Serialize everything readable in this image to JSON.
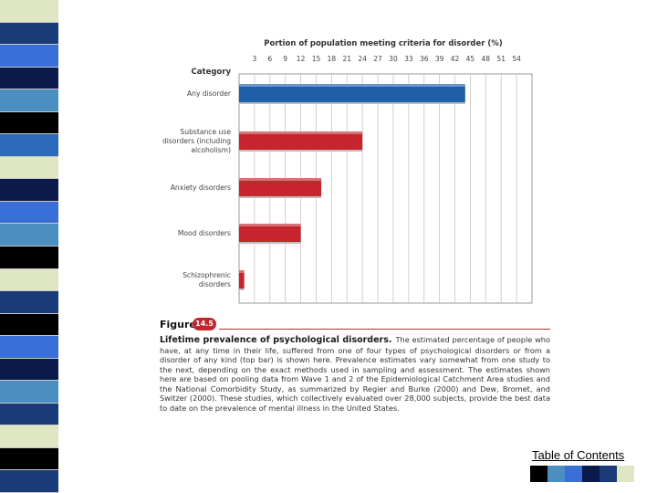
{
  "theme": {
    "accent_blue": "#1f5fa8",
    "accent_red": "#c7252d",
    "stripe_colors": [
      "#dfe6c4",
      "#1a3a78",
      "#3a6fd8",
      "#0a1a4a",
      "#4a8fc0",
      "#000000",
      "#2a6ab8",
      "#dfe6c4",
      "#0a1a4a",
      "#3a6fd8",
      "#4a8fc0",
      "#000000",
      "#dfe6c4",
      "#1a3a78",
      "#000000",
      "#3a6fd8",
      "#0a1a4a",
      "#4a8fc0",
      "#1a3a78",
      "#dfe6c4",
      "#000000",
      "#1a3a78"
    ],
    "swatch_colors": [
      "#000000",
      "#4a8fc0",
      "#3a6fd8",
      "#0a1a4a",
      "#1a3a78",
      "#dfe6c4",
      "#ffffff"
    ]
  },
  "chart_data": {
    "type": "bar",
    "orientation": "horizontal",
    "title": "Portion of population meeting criteria for disorder (%)",
    "category_header": "Category",
    "categories": [
      "Any disorder",
      "Substance use disorders (including alcoholism)",
      "Anxiety disorders",
      "Mood disorders",
      "Schizophrenic disorders"
    ],
    "category_lines": [
      [
        "Any disorder"
      ],
      [
        "Substance use",
        "disorders (including",
        "alcoholism)"
      ],
      [
        "Anxiety disorders"
      ],
      [
        "Mood disorders"
      ],
      [
        "Schizophrenic",
        "disorders"
      ]
    ],
    "values": [
      44,
      24,
      16,
      12,
      1
    ],
    "xlim": [
      0,
      57
    ],
    "ticks": [
      3,
      6,
      9,
      12,
      15,
      18,
      21,
      24,
      27,
      30,
      33,
      36,
      39,
      42,
      45,
      48,
      51,
      54
    ],
    "tick_labels": [
      "3",
      "6",
      "9",
      "12",
      "15",
      "18",
      "21",
      "24",
      "27",
      "30",
      "33",
      "36",
      "39",
      "42",
      "45",
      "48",
      "51",
      "54"
    ],
    "grid": true
  },
  "figure": {
    "label": "Figure",
    "number": "14.5",
    "caption_title": "Lifetime prevalence of psychological disorders.",
    "caption_body": "The estimated percentage of people who have, at any time in their life, suffered from one of four types of psychological disorders or from a disorder of any kind (top bar) is shown here. Prevalence estimates vary somewhat from one study to the next, depending on the exact methods used in sampling and assessment. The estimates shown here are based on pooling data from Wave 1 and 2 of the Epidemiological Catchment Area studies and the National Comorbidity Study, as summarized by Regier and Burke (2000) and Dew, Bromet, and Switzer (2000). These studies, which collectively evaluated over 28,000 subjects, provide the best data to date on the prevalence of mental illness in the United States."
  },
  "footer": {
    "toc_label": "Table of Contents"
  }
}
